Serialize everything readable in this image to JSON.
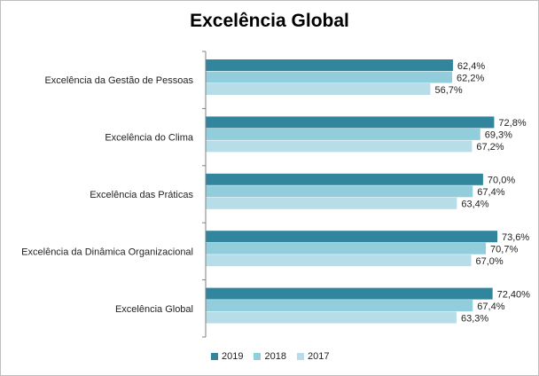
{
  "chart_data": {
    "type": "bar",
    "orientation": "horizontal",
    "title": "Excelência Global",
    "categories": [
      "Excelência da Gestão de Pessoas",
      "Excelência do Clima",
      "Excelência das Práticas",
      "Excelência da Dinâmica Organizacional",
      "Excelência Global"
    ],
    "series": [
      {
        "name": "2019",
        "color": "#31859c",
        "values": [
          62.4,
          72.8,
          70.0,
          73.6,
          72.4
        ],
        "labels": [
          "62,4%",
          "72,8%",
          "70,0%",
          "73,6%",
          "72,40%"
        ]
      },
      {
        "name": "2018",
        "color": "#92cddc",
        "values": [
          62.2,
          69.3,
          67.4,
          70.7,
          67.4
        ],
        "labels": [
          "62,2%",
          "69,3%",
          "67,4%",
          "70,7%",
          "67,4%"
        ]
      },
      {
        "name": "2017",
        "color": "#b7dee8",
        "values": [
          56.7,
          67.2,
          63.4,
          67.0,
          63.3
        ],
        "labels": [
          "56,7%",
          "67,2%",
          "63,4%",
          "67,0%",
          "63,3%"
        ]
      }
    ],
    "xlim": [
      0,
      75
    ],
    "legend_position": "bottom",
    "grid": false
  }
}
